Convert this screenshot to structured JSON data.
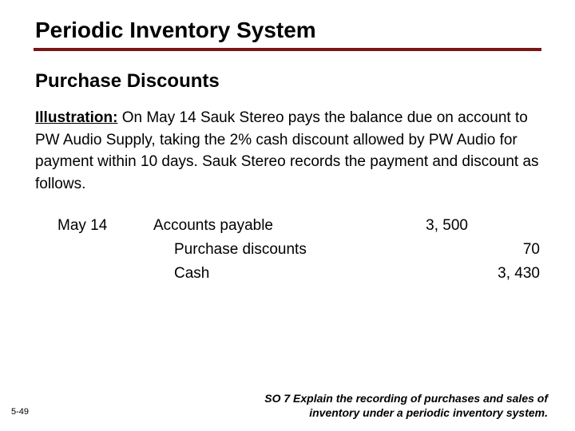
{
  "title": "Periodic Inventory System",
  "subtitle": "Purchase Discounts",
  "illustration_label": "Illustration:",
  "body_text": "On May 14 Sauk Stereo pays the balance due on account to PW Audio Supply, taking the 2% cash discount allowed by PW Audio for payment within 10 days. Sauk Stereo records the payment and discount as follows.",
  "journal": {
    "date": "May 14",
    "lines": [
      {
        "account": "Accounts payable",
        "debit": "3, 500",
        "credit": ""
      },
      {
        "account": "Purchase discounts",
        "debit": "",
        "credit": "70"
      },
      {
        "account": "Cash",
        "debit": "",
        "credit": "3, 430"
      }
    ]
  },
  "page_number": "5-49",
  "footer_so": "SO 7  Explain the recording of purchases and sales of inventory under a periodic inventory system.",
  "colors": {
    "rule": "#7a1616",
    "text": "#000000",
    "background": "#ffffff"
  },
  "typography": {
    "title_size": 28,
    "subtitle_size": 24,
    "body_size": 19,
    "footer_so_size": 14,
    "page_size": 11
  }
}
